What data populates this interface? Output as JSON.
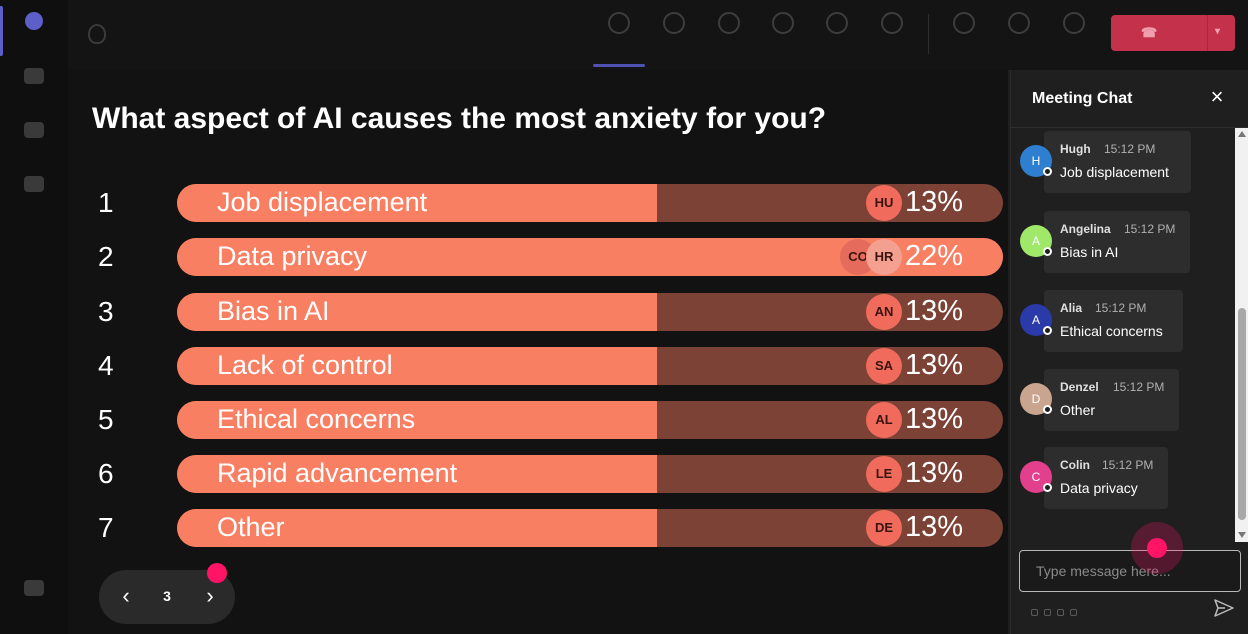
{
  "poll": {
    "question": "What aspect of AI causes the most anxiety for you?",
    "options": [
      {
        "number": "1",
        "label": "Job displacement",
        "percent_label": "13%",
        "value": 13,
        "voters": [
          "HU"
        ]
      },
      {
        "number": "2",
        "label": "Data privacy",
        "percent_label": "22%",
        "value": 22,
        "voters": [
          "CO",
          "HR"
        ]
      },
      {
        "number": "3",
        "label": "Bias in AI",
        "percent_label": "13%",
        "value": 13,
        "voters": [
          "AN"
        ]
      },
      {
        "number": "4",
        "label": "Lack of control",
        "percent_label": "13%",
        "value": 13,
        "voters": [
          "SA"
        ]
      },
      {
        "number": "5",
        "label": "Ethical concerns",
        "percent_label": "13%",
        "value": 13,
        "voters": [
          "AL"
        ]
      },
      {
        "number": "6",
        "label": "Rapid advancement",
        "percent_label": "13%",
        "value": 13,
        "voters": [
          "LE"
        ]
      },
      {
        "number": "7",
        "label": "Other",
        "percent_label": "13%",
        "value": 13,
        "voters": [
          "DE"
        ]
      }
    ]
  },
  "pager": {
    "page": "3"
  },
  "chat": {
    "title": "Meeting Chat",
    "input_placeholder": "Type message here...",
    "messages": [
      {
        "initial": "H",
        "sender": "Hugh",
        "time": "15:12 PM",
        "text": "Job displacement",
        "avatar_color": "#2f7fd0"
      },
      {
        "initial": "A",
        "sender": "Angelina",
        "time": "15:12 PM",
        "text": "Bias in AI",
        "avatar_color": "#9fe86a"
      },
      {
        "initial": "A",
        "sender": "Alia",
        "time": "15:12 PM",
        "text": "Ethical concerns",
        "avatar_color": "#2a3aa8"
      },
      {
        "initial": "D",
        "sender": "Denzel",
        "time": "15:12 PM",
        "text": "Other",
        "avatar_color": "#c9a58f"
      },
      {
        "initial": "C",
        "sender": "Colin",
        "time": "15:12 PM",
        "text": "Data privacy",
        "avatar_color": "#e23f8c"
      }
    ]
  },
  "colors": {
    "bar_fill": "#f97f63",
    "bar_track": "#7d4236",
    "leave_button": "#c4314b",
    "cursor": "#ff1466"
  },
  "icons": {
    "close": "close-icon",
    "send": "send-icon",
    "prev": "chevron-left-icon",
    "next": "chevron-right-icon"
  }
}
